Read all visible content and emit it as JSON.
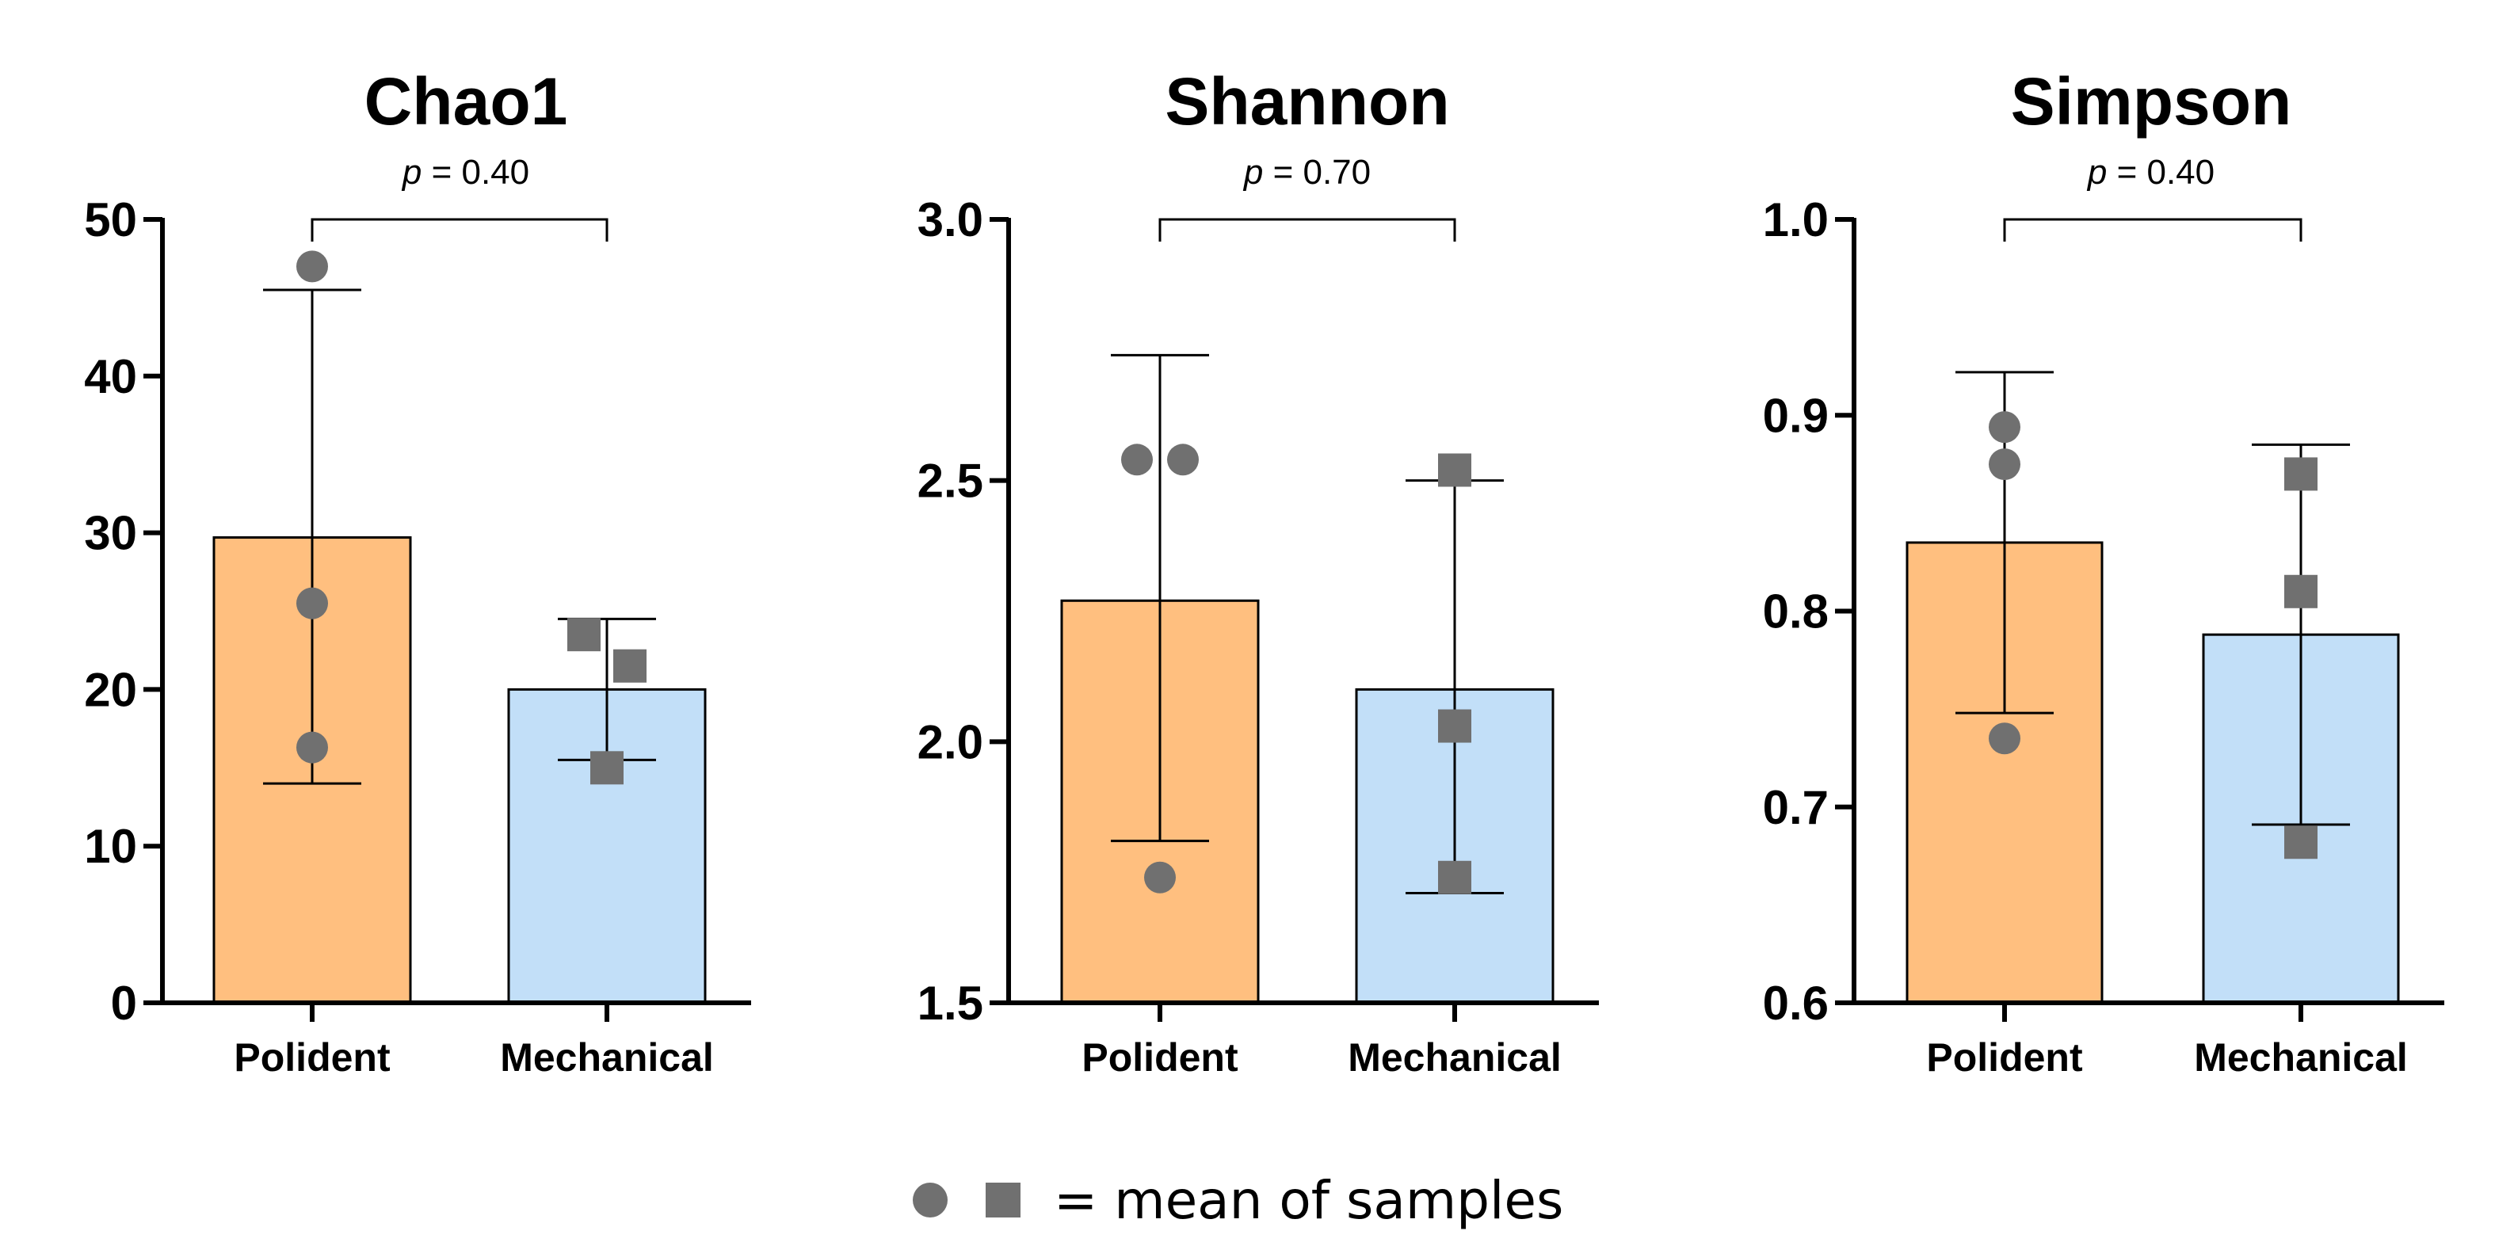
{
  "colors": {
    "polident_bar": "#FFBF7F",
    "mechanical_bar": "#C2DFF8",
    "marker": "#707070",
    "axis": "#000000"
  },
  "legend": {
    "circle_icon": "circle-icon",
    "square_icon": "square-icon",
    "text": "=  mean of samples"
  },
  "chart_data": [
    {
      "type": "bar",
      "title": "Chao1",
      "categories": [
        "Polident",
        "Mechanical"
      ],
      "ylim": [
        0,
        50
      ],
      "yticks": [
        0,
        10,
        20,
        30,
        40,
        50
      ],
      "ytick_labels": [
        "0",
        "10",
        "20",
        "30",
        "40",
        "50"
      ],
      "values": [
        29.7,
        20.0
      ],
      "error_low": [
        14.0,
        15.5
      ],
      "error_high": [
        45.5,
        24.5
      ],
      "points": [
        [
          47.0,
          25.5,
          16.3
        ],
        [
          23.5,
          21.5,
          15.0
        ]
      ],
      "markers": [
        "circle",
        "square"
      ],
      "p_label": "p",
      "p_value": " = 0.40",
      "grid": false
    },
    {
      "type": "bar",
      "title": "Shannon",
      "categories": [
        "Polident",
        "Mechanical"
      ],
      "ylim": [
        1.5,
        3.0
      ],
      "yticks": [
        1.5,
        2.0,
        2.5,
        3.0
      ],
      "ytick_labels": [
        "1.5",
        "2.0",
        "2.5",
        "3.0"
      ],
      "values": [
        2.27,
        2.1
      ],
      "error_low": [
        1.81,
        1.71
      ],
      "error_high": [
        2.74,
        2.5
      ],
      "points": [
        [
          2.54,
          2.54,
          1.74
        ],
        [
          2.52,
          2.03,
          1.74
        ]
      ],
      "markers": [
        "circle",
        "square"
      ],
      "p_label": "p",
      "p_value": " = 0.70",
      "grid": false
    },
    {
      "type": "bar",
      "title": "Simpson",
      "categories": [
        "Polident",
        "Mechanical"
      ],
      "ylim": [
        0.6,
        1.0
      ],
      "yticks": [
        0.6,
        0.7,
        0.8,
        0.9,
        1.0
      ],
      "ytick_labels": [
        "0.6",
        "0.7",
        "0.8",
        "0.9",
        "1.0"
      ],
      "values": [
        0.835,
        0.788
      ],
      "error_low": [
        0.748,
        0.691
      ],
      "error_high": [
        0.922,
        0.885
      ],
      "points": [
        [
          0.894,
          0.875,
          0.735
        ],
        [
          0.87,
          0.81,
          0.682
        ]
      ],
      "markers": [
        "circle",
        "square"
      ],
      "p_label": "p",
      "p_value": " = 0.40",
      "grid": false
    }
  ]
}
